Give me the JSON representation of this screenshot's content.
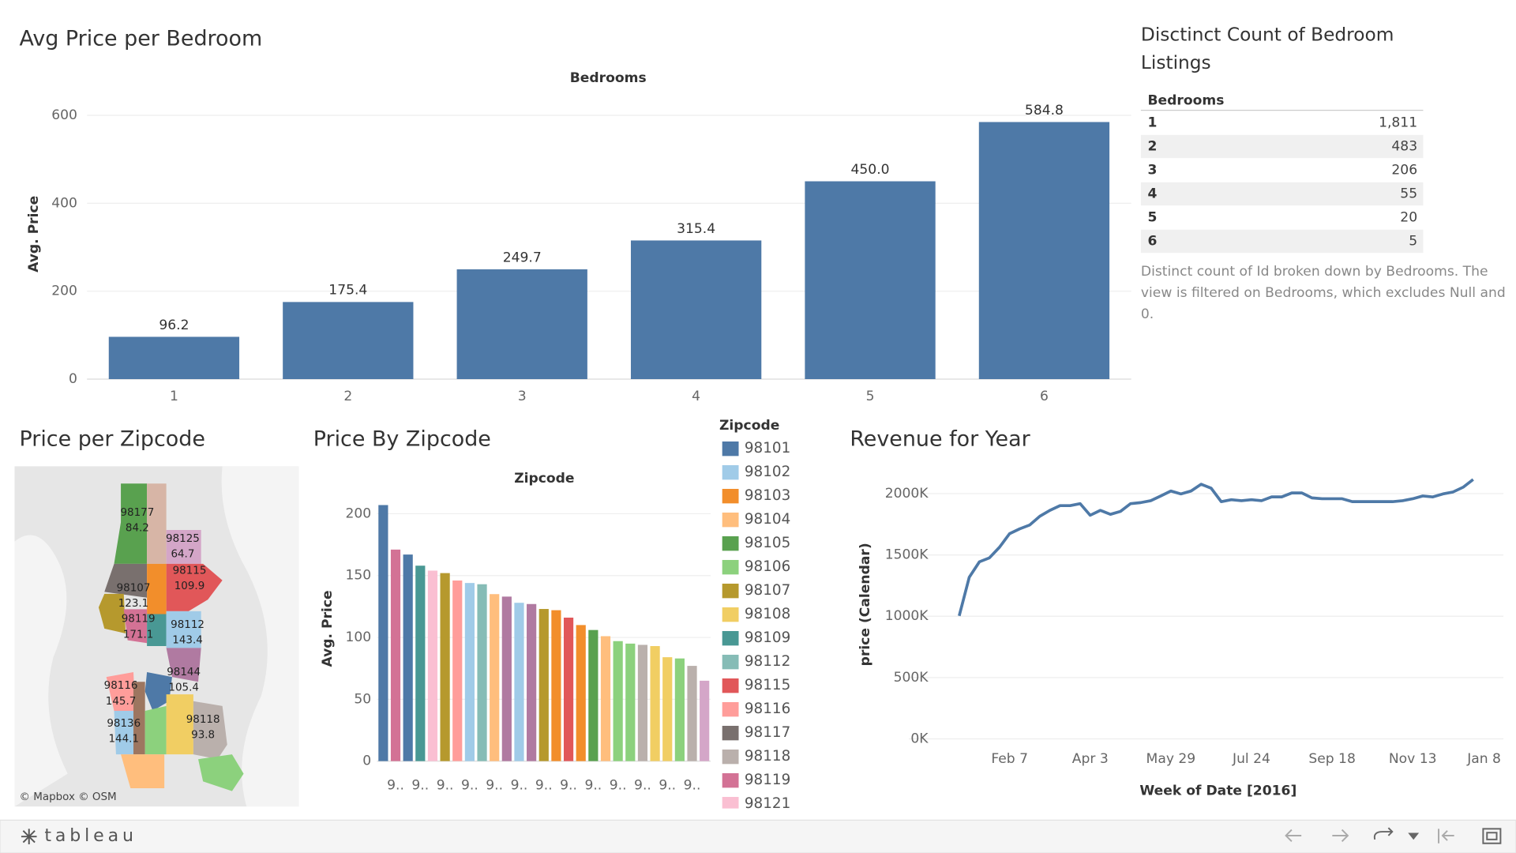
{
  "chart_data": [
    {
      "type": "bar",
      "title": "Avg Price per Bedroom",
      "x_label": "Bedrooms",
      "y_label": "Avg. Price",
      "categories": [
        "1",
        "2",
        "3",
        "4",
        "5",
        "6"
      ],
      "values": [
        96.2,
        175.4,
        249.7,
        315.4,
        450.0,
        584.8
      ],
      "value_labels": [
        "96.2",
        "175.4",
        "249.7",
        "315.4",
        "450.0",
        "584.8"
      ],
      "color": "#4e79a7",
      "ylim": [
        0,
        660
      ],
      "yticks": [
        0,
        200,
        400,
        600
      ],
      "grid": true
    },
    {
      "type": "bar",
      "title": "Price By Zipcode",
      "x_label": "Zipcode",
      "y_label": "Avg. Price",
      "categories": [
        null,
        "9..",
        null,
        "9..",
        null,
        "9..",
        null,
        "9..",
        null,
        "9..",
        null,
        "9..",
        null,
        "9..",
        null,
        "9..",
        null,
        "9..",
        null,
        "9..",
        null,
        "9..",
        null,
        "9..",
        null,
        "9..",
        null
      ],
      "values": [
        207,
        171,
        167,
        158,
        154,
        152,
        146,
        144,
        143,
        135,
        133,
        128,
        127,
        123,
        122,
        116,
        110,
        106,
        101,
        97,
        95,
        94,
        93,
        84,
        83,
        77,
        65
      ],
      "colors": [
        "#4e79a7",
        "#d37295",
        "#4e79a7",
        "#499894",
        "#fabfd2",
        "#b6992d",
        "#ff9d9a",
        "#a0cbe8",
        "#86bcb6",
        "#ffbe7d",
        "#b07aa1",
        "#a0cbe8",
        "#b07aa1",
        "#b6992d",
        "#f28e2b",
        "#e15759",
        "#f28e2b",
        "#59a14f",
        "#ffbe7d",
        "#8cd17d",
        "#8cd17d",
        "#bab0ac",
        "#f1ce63",
        "#f1ce63",
        "#8cd17d",
        "#bab0ac",
        "#d4a6c8"
      ],
      "ylim": [
        0,
        215
      ],
      "yticks": [
        0,
        50,
        100,
        150,
        200
      ],
      "grid": true,
      "legend": {
        "title": "Zipcode",
        "items": [
          {
            "name": "98101",
            "color": "#4e79a7"
          },
          {
            "name": "98102",
            "color": "#a0cbe8"
          },
          {
            "name": "98103",
            "color": "#f28e2b"
          },
          {
            "name": "98104",
            "color": "#ffbe7d"
          },
          {
            "name": "98105",
            "color": "#59a14f"
          },
          {
            "name": "98106",
            "color": "#8cd17d"
          },
          {
            "name": "98107",
            "color": "#b6992d"
          },
          {
            "name": "98108",
            "color": "#f1ce63"
          },
          {
            "name": "98109",
            "color": "#499894"
          },
          {
            "name": "98112",
            "color": "#86bcb6"
          },
          {
            "name": "98115",
            "color": "#e15759"
          },
          {
            "name": "98116",
            "color": "#ff9d9a"
          },
          {
            "name": "98117",
            "color": "#79706e"
          },
          {
            "name": "98118",
            "color": "#bab0ac"
          },
          {
            "name": "98119",
            "color": "#d37295"
          },
          {
            "name": "98121",
            "color": "#fabfd2"
          }
        ]
      }
    },
    {
      "type": "line",
      "title": "Revenue for Year",
      "x_label": "Week of Date [2016]",
      "y_label": "price (Calendar)",
      "x": [
        1,
        2,
        3,
        4,
        5,
        6,
        7,
        8,
        9,
        10,
        11,
        12,
        13,
        14,
        15,
        16,
        17,
        18,
        19,
        20,
        21,
        22,
        23,
        24,
        25,
        26,
        27,
        28,
        29,
        30,
        31,
        32,
        33,
        34,
        35,
        36,
        37,
        38,
        39,
        40,
        41,
        42,
        43,
        44,
        45,
        46,
        47,
        48,
        49,
        50,
        51,
        52
      ],
      "values": [
        1003000,
        1318000,
        1444000,
        1476000,
        1563000,
        1673000,
        1713000,
        1744000,
        1815000,
        1863000,
        1902000,
        1902000,
        1918000,
        1823000,
        1863000,
        1831000,
        1855000,
        1918000,
        1926000,
        1942000,
        1981000,
        2021000,
        1997000,
        2021000,
        2076000,
        2044000,
        1934000,
        1950000,
        1942000,
        1950000,
        1942000,
        1973000,
        1973000,
        2005000,
        2005000,
        1965000,
        1958000,
        1958000,
        1958000,
        1934000,
        1934000,
        1934000,
        1934000,
        1934000,
        1942000,
        1958000,
        1981000,
        1973000,
        1997000,
        2013000,
        2052000,
        2115000
      ],
      "color": "#4e79a7",
      "xlim": [
        -4,
        55
      ],
      "ylim": [
        0,
        2200000
      ],
      "xticks": [
        {
          "value": 6,
          "label": "Feb 7"
        },
        {
          "value": 14,
          "label": "Apr 3"
        },
        {
          "value": 22,
          "label": "May 29"
        },
        {
          "value": 30,
          "label": "Jul 24"
        },
        {
          "value": 38,
          "label": "Sep 18"
        },
        {
          "value": 46,
          "label": "Nov 13"
        },
        {
          "value": 54,
          "label": "Jan 8"
        }
      ],
      "yticks": [
        {
          "value": 0,
          "label": "0K"
        },
        {
          "value": 500000,
          "label": "500K"
        },
        {
          "value": 1000000,
          "label": "1000K"
        },
        {
          "value": 1500000,
          "label": "1500K"
        },
        {
          "value": 2000000,
          "label": "2000K"
        }
      ],
      "grid": true
    }
  ],
  "table": {
    "title": "Disctinct Count of Bedroom Listings",
    "header": "Bedrooms",
    "rows": [
      [
        "1",
        "1,811"
      ],
      [
        "2",
        "483"
      ],
      [
        "3",
        "206"
      ],
      [
        "4",
        "55"
      ],
      [
        "5",
        "20"
      ],
      [
        "6",
        "5"
      ]
    ],
    "caption": "Distinct count of Id broken down by Bedrooms. The view is filtered on Bedrooms, which excludes Null and 0."
  },
  "map": {
    "title": "Price per Zipcode",
    "attribution": "© Mapbox © OSM",
    "labels": [
      {
        "zip": "98177",
        "value": 84.2
      },
      {
        "zip": "98125",
        "value": 64.7
      },
      {
        "zip": "98115",
        "value": 109.9
      },
      {
        "zip": "98107",
        "value": 123.1
      },
      {
        "zip": "98119",
        "value": 171.1
      },
      {
        "zip": "98112",
        "value": 143.4
      },
      {
        "zip": "98144",
        "value": 105.4
      },
      {
        "zip": "98116",
        "value": 145.7
      },
      {
        "zip": "98136",
        "value": 144.1
      },
      {
        "zip": "98118",
        "value": 93.8
      }
    ]
  },
  "footer": {
    "logo": "tableau"
  }
}
